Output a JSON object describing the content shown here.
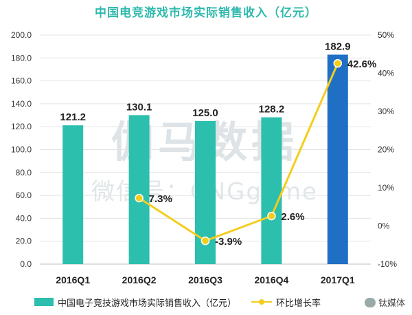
{
  "chart_data": {
    "type": "bar",
    "title": "中国电竞游戏市场实际销售收入（亿元）",
    "categories": [
      "2016Q1",
      "2016Q2",
      "2016Q3",
      "2016Q4",
      "2017Q1"
    ],
    "series": [
      {
        "name": "中国电子竞技游戏市场实际销售收入（亿元）",
        "type": "bar",
        "axis": "left",
        "values": [
          121.2,
          130.1,
          125.0,
          128.2,
          182.9
        ],
        "value_labels": [
          "121.2",
          "130.1",
          "125.0",
          "128.2",
          "182.9"
        ],
        "colors": [
          "#2cbfae",
          "#2cbfae",
          "#2cbfae",
          "#2cbfae",
          "#1f6fc5"
        ]
      },
      {
        "name": "环比增长率",
        "type": "line",
        "axis": "right",
        "values": [
          null,
          7.3,
          -3.9,
          2.6,
          42.6
        ],
        "value_labels": [
          null,
          "7.3%",
          "-3.9%",
          "2.6%",
          "42.6%"
        ],
        "color": "#f4cd1c"
      }
    ],
    "ylim_left": [
      0,
      200
    ],
    "yticks_left": [
      "0.0",
      "20.0",
      "40.0",
      "60.0",
      "80.0",
      "100.0",
      "120.0",
      "140.0",
      "160.0",
      "180.0",
      "200.0"
    ],
    "ylim_right": [
      -10,
      50
    ],
    "yticks_right": [
      "-10%",
      "0%",
      "10%",
      "20%",
      "30%",
      "40%",
      "50%"
    ],
    "grid": true,
    "legend_position": "bottom",
    "watermark_text": [
      "伽马数据",
      "微信号：CNGgame"
    ]
  },
  "footer": {
    "source_mark": "钛媒体"
  }
}
